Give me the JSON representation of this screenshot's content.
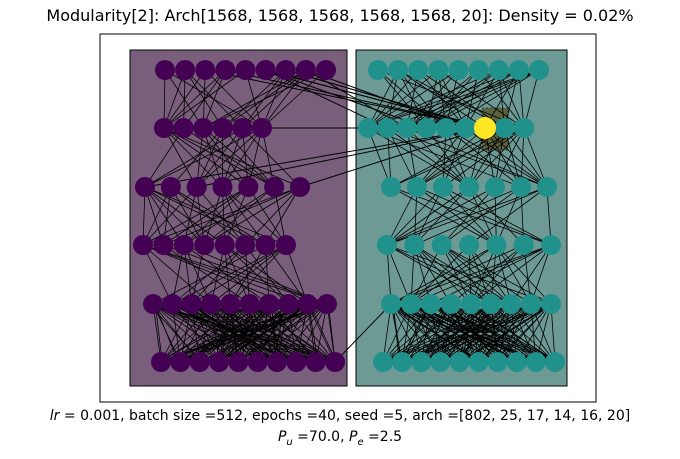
{
  "title": "Modularity[2]: Arch[1568, 1568, 1568, 1568, 1568, 20]: Density = 0.02%",
  "caption": {
    "line1_lr_symbol": "lr",
    "line1_rest": " =  0.001, batch size =512, epochs =40, seed =5, arch =[802, 25, 17, 14, 16, 20]",
    "line2_pu_symbol": "P",
    "line2_pu_sub": "u",
    "line2_pu_rest": " =70.0, ",
    "line2_pe_symbol": "P",
    "line2_pe_sub": "e",
    "line2_pe_rest": " =2.5"
  },
  "colors": {
    "module_left_fill": "#7a5f7c",
    "module_right_fill": "#6e9a96",
    "node_left": "#440154",
    "node_right": "#21918c",
    "node_highlight": "#fde725",
    "highlight_box": "#5a5a2e",
    "edge": "#000000"
  },
  "network": {
    "layers": 6,
    "left_module_nodes_per_layer": [
      9,
      6,
      7,
      8,
      10,
      10
    ],
    "right_module_nodes_per_layer": [
      9,
      9,
      7,
      7,
      9,
      10
    ],
    "highlighted_node": {
      "layer": 1,
      "module": "right",
      "index": 6
    }
  }
}
